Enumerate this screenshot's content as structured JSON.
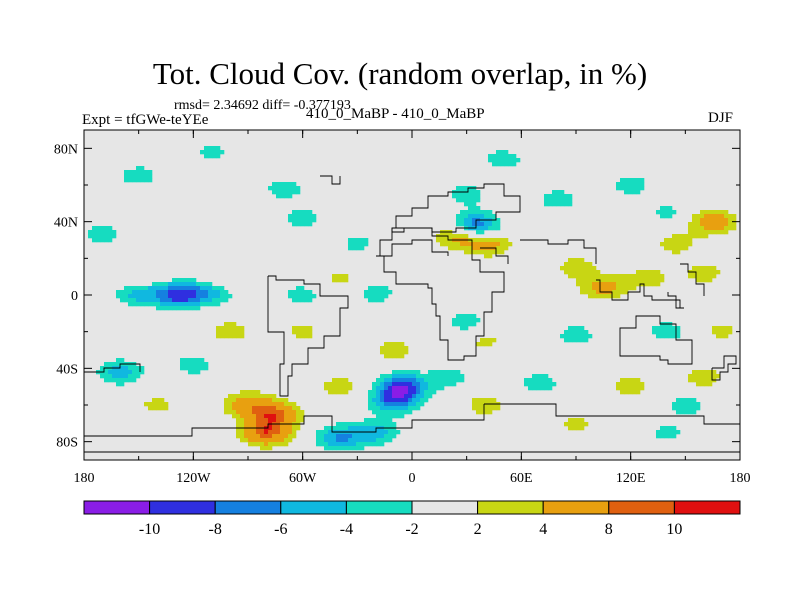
{
  "figure": {
    "title": "Tot. Cloud Cov. (random overlap, in %)",
    "stats_text": "rmsd= 2.34692 diff= -0.377193",
    "experiment_label": "Expt = tfGWe-teYEe",
    "subtitle": "410_0_MaBP - 410_0_MaBP",
    "season": "DJF"
  },
  "chart_data": {
    "type": "heatmap",
    "title": "Tot. Cloud Cov. (random overlap, in %)",
    "subtitle": "410_0_MaBP - 410_0_MaBP",
    "annotations": [
      "rmsd= 2.34692 diff= -0.377193",
      "Expt = tfGWe-teYEe",
      "DJF"
    ],
    "rmsd": 2.34692,
    "diff": -0.377193,
    "x_range": [
      -180,
      180
    ],
    "y_range": [
      -90,
      90
    ],
    "x_ticks": [
      {
        "value": -180,
        "label": "180"
      },
      {
        "value": -120,
        "label": "120W"
      },
      {
        "value": -60,
        "label": "60W"
      },
      {
        "value": 0,
        "label": "0"
      },
      {
        "value": 60,
        "label": "60E"
      },
      {
        "value": 120,
        "label": "120E"
      },
      {
        "value": 180,
        "label": "180"
      }
    ],
    "y_ticks": [
      {
        "value": 80,
        "label": "80N"
      },
      {
        "value": 40,
        "label": "40N"
      },
      {
        "value": 0,
        "label": "0"
      },
      {
        "value": -40,
        "label": "40S"
      },
      {
        "value": -80,
        "label": "80S"
      }
    ],
    "colorbar": {
      "levels": [
        -10,
        -8,
        -6,
        -4,
        -2,
        2,
        4,
        8,
        10
      ],
      "level_labels": [
        "-10",
        "-8",
        "-6",
        "-4",
        "-2",
        "2",
        "4",
        "8",
        "10"
      ],
      "colors": [
        "#8a1de6",
        "#2f2fe0",
        "#1580e0",
        "#10b8e0",
        "#16dcc0",
        "#e6e6e6",
        "#c8d614",
        "#e8a010",
        "#e06010",
        "#e01010"
      ]
    },
    "anomalies": [
      {
        "lon": -128,
        "lat": 0,
        "value": -9
      },
      {
        "lon": -150,
        "lat": 1,
        "value": -5
      },
      {
        "lon": -110,
        "lat": 2,
        "value": -5
      },
      {
        "lon": -60,
        "lat": 0,
        "value": -3
      },
      {
        "lon": -20,
        "lat": 1,
        "value": -3
      },
      {
        "lon": -105,
        "lat": 9,
        "value": 3
      },
      {
        "lon": -150,
        "lat": 10,
        "value": 2.5
      },
      {
        "lon": -40,
        "lat": 9,
        "value": 2.5
      },
      {
        "lon": 25,
        "lat": 32,
        "value": 5
      },
      {
        "lon": 42,
        "lat": 28,
        "value": 5
      },
      {
        "lon": 35,
        "lat": 38,
        "value": -8
      },
      {
        "lon": 105,
        "lat": 4,
        "value": 5
      },
      {
        "lon": 130,
        "lat": 9,
        "value": 3
      },
      {
        "lon": 90,
        "lat": 15,
        "value": 3
      },
      {
        "lon": 160,
        "lat": 12,
        "value": 3
      },
      {
        "lon": 80,
        "lat": 52,
        "value": -3
      },
      {
        "lon": -150,
        "lat": 65,
        "value": -3
      },
      {
        "lon": -70,
        "lat": 58,
        "value": -3
      },
      {
        "lon": -60,
        "lat": 42,
        "value": -3
      },
      {
        "lon": -170,
        "lat": 33,
        "value": -3
      },
      {
        "lon": 30,
        "lat": 55,
        "value": -3
      },
      {
        "lon": 140,
        "lat": 45,
        "value": -2.5
      },
      {
        "lon": 120,
        "lat": 60,
        "value": -3
      },
      {
        "lon": 50,
        "lat": 74,
        "value": -3
      },
      {
        "lon": -110,
        "lat": 78,
        "value": -2.5
      },
      {
        "lon": 145,
        "lat": 28,
        "value": 3
      },
      {
        "lon": 165,
        "lat": 40,
        "value": 6
      },
      {
        "lon": -30,
        "lat": 28,
        "value": -2.5
      },
      {
        "lon": 30,
        "lat": -15,
        "value": -3
      },
      {
        "lon": 40,
        "lat": -25,
        "value": 2.5
      },
      {
        "lon": -100,
        "lat": -20,
        "value": 3
      },
      {
        "lon": -60,
        "lat": -20,
        "value": 2.5
      },
      {
        "lon": -10,
        "lat": -30,
        "value": 3
      },
      {
        "lon": 90,
        "lat": -22,
        "value": -3
      },
      {
        "lon": 140,
        "lat": -20,
        "value": -3
      },
      {
        "lon": 170,
        "lat": -20,
        "value": 2.5
      },
      {
        "lon": -90,
        "lat": -60,
        "value": 6
      },
      {
        "lon": -75,
        "lat": -65,
        "value": 8
      },
      {
        "lon": -80,
        "lat": -75,
        "value": 9
      },
      {
        "lon": -160,
        "lat": -42,
        "value": -5
      },
      {
        "lon": -120,
        "lat": -38,
        "value": -3
      },
      {
        "lon": -5,
        "lat": -50,
        "value": -9
      },
      {
        "lon": -10,
        "lat": -58,
        "value": -7
      },
      {
        "lon": 20,
        "lat": -45,
        "value": -3
      },
      {
        "lon": -40,
        "lat": -50,
        "value": 3
      },
      {
        "lon": -20,
        "lat": -75,
        "value": -5
      },
      {
        "lon": -40,
        "lat": -78,
        "value": -6
      },
      {
        "lon": 40,
        "lat": -60,
        "value": 3
      },
      {
        "lon": 70,
        "lat": -48,
        "value": -3
      },
      {
        "lon": 120,
        "lat": -50,
        "value": 3
      },
      {
        "lon": 150,
        "lat": -60,
        "value": -3
      },
      {
        "lon": 160,
        "lat": -45,
        "value": 3
      },
      {
        "lon": -140,
        "lat": -60,
        "value": 2.5
      },
      {
        "lon": 90,
        "lat": -70,
        "value": 2.5
      },
      {
        "lon": 140,
        "lat": -75,
        "value": -2.5
      }
    ]
  }
}
